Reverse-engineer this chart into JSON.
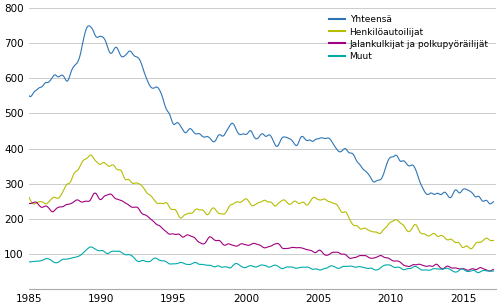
{
  "legend": [
    "Yhteensä",
    "Henkilöautoilijat",
    "Jalankulkijat ja polkupyöräilijät",
    "Muut"
  ],
  "colors": [
    "#2e75b6",
    "#b5bd00",
    "#a0007f",
    "#00aaaa"
  ],
  "linewidths": [
    0.8,
    0.8,
    0.8,
    0.8
  ],
  "xlim": [
    1985.0,
    2017.25
  ],
  "ylim": [
    0,
    800
  ],
  "yticks": [
    0,
    100,
    200,
    300,
    400,
    500,
    600,
    700,
    800
  ],
  "xticks": [
    1985,
    1990,
    1995,
    2000,
    2005,
    2010,
    2015
  ],
  "grid_color": "#cccccc",
  "bg_color": "#ffffff",
  "figsize": [
    5.0,
    3.08
  ],
  "dpi": 100
}
